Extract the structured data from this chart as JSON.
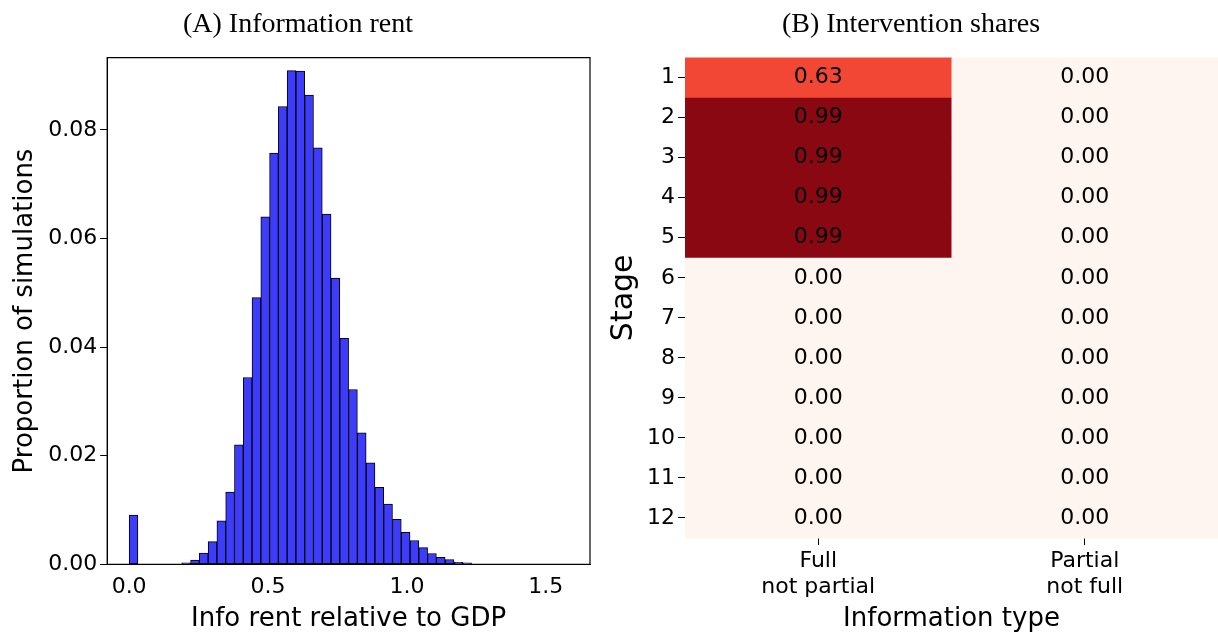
{
  "chart_data": [
    {
      "type": "histogram",
      "title": "(A) Information rent",
      "xlabel": "Info rent relative to GDP",
      "ylabel": "Proportion of simulations",
      "color": "#3c3cfa",
      "bins": [
        0,
        0.0316,
        0.0632,
        0.0948,
        0.1264,
        0.158,
        0.1896,
        0.2212,
        0.2528,
        0.2844,
        0.316,
        0.3476,
        0.3792,
        0.4108,
        0.4424,
        0.474,
        0.5056,
        0.5372,
        0.5688,
        0.6004,
        0.632,
        0.6636,
        0.6952,
        0.7268,
        0.7584,
        0.79,
        0.8216,
        0.8532,
        0.8848,
        0.9164,
        0.948,
        0.9796,
        1.0112,
        1.0428,
        1.0744,
        1.106,
        1.1376,
        1.1692,
        1.2008,
        1.2324,
        1.264,
        1.2956,
        1.3272,
        1.3588,
        1.3904,
        1.422,
        1.4536,
        1.4852,
        1.5168,
        1.5484,
        1.58
      ],
      "values": [
        0.0091,
        0,
        0,
        0,
        0,
        0,
        0.0003,
        0.0008,
        0.0021,
        0.0042,
        0.008,
        0.0133,
        0.022,
        0.0344,
        0.0491,
        0.064,
        0.0757,
        0.0843,
        0.0909,
        0.0908,
        0.0864,
        0.0767,
        0.0645,
        0.0527,
        0.0416,
        0.0322,
        0.0242,
        0.0187,
        0.0142,
        0.0111,
        0.0083,
        0.0059,
        0.0044,
        0.0031,
        0.002,
        0.0013,
        0.0009,
        0.0004,
        0.0003,
        0,
        0,
        0,
        0,
        0,
        0,
        0,
        0,
        0,
        0,
        0
      ],
      "xlim": [
        -0.079,
        1.659
      ],
      "xticks": [
        {
          "value": 0,
          "label": "0.0"
        },
        {
          "value": 0.5,
          "label": "0.5"
        },
        {
          "value": 1,
          "label": "1.0"
        },
        {
          "value": 1.5,
          "label": "1.5"
        }
      ],
      "ylim": [
        0,
        0.0933
      ],
      "yticks": [
        {
          "value": 0,
          "label": "0.00"
        },
        {
          "value": 0.02,
          "label": "0.02"
        },
        {
          "value": 0.04,
          "label": "0.04"
        },
        {
          "value": 0.06,
          "label": "0.06"
        },
        {
          "value": 0.08,
          "label": "0.08"
        }
      ],
      "grid": false,
      "legend": false
    },
    {
      "type": "heatmap",
      "title": "(B) Intervention shares",
      "xlabel": "Information type",
      "ylabel": "Stage",
      "categories": [
        "Full\nnot partial",
        "Partial\nnot full"
      ],
      "y_categories": [
        "1",
        "2",
        "3",
        "4",
        "5",
        "6",
        "7",
        "8",
        "9",
        "10",
        "11",
        "12"
      ],
      "cells": [
        [
          0.63,
          0
        ],
        [
          0.99,
          0
        ],
        [
          0.99,
          0
        ],
        [
          0.99,
          0
        ],
        [
          0.99,
          0
        ],
        [
          0,
          0
        ],
        [
          0,
          0
        ],
        [
          0,
          0
        ],
        [
          0,
          0
        ],
        [
          0,
          0
        ],
        [
          0,
          0
        ],
        [
          0,
          0
        ]
      ],
      "cell_labels": [
        [
          "0.63",
          "0.00"
        ],
        [
          "0.99",
          "0.00"
        ],
        [
          "0.99",
          "0.00"
        ],
        [
          "0.99",
          "0.00"
        ],
        [
          "0.99",
          "0.00"
        ],
        [
          "0.00",
          "0.00"
        ],
        [
          "0.00",
          "0.00"
        ],
        [
          "0.00",
          "0.00"
        ],
        [
          "0.00",
          "0.00"
        ],
        [
          "0.00",
          "0.00"
        ],
        [
          "0.00",
          "0.00"
        ],
        [
          "0.00",
          "0.00"
        ]
      ],
      "legend": false
    }
  ]
}
